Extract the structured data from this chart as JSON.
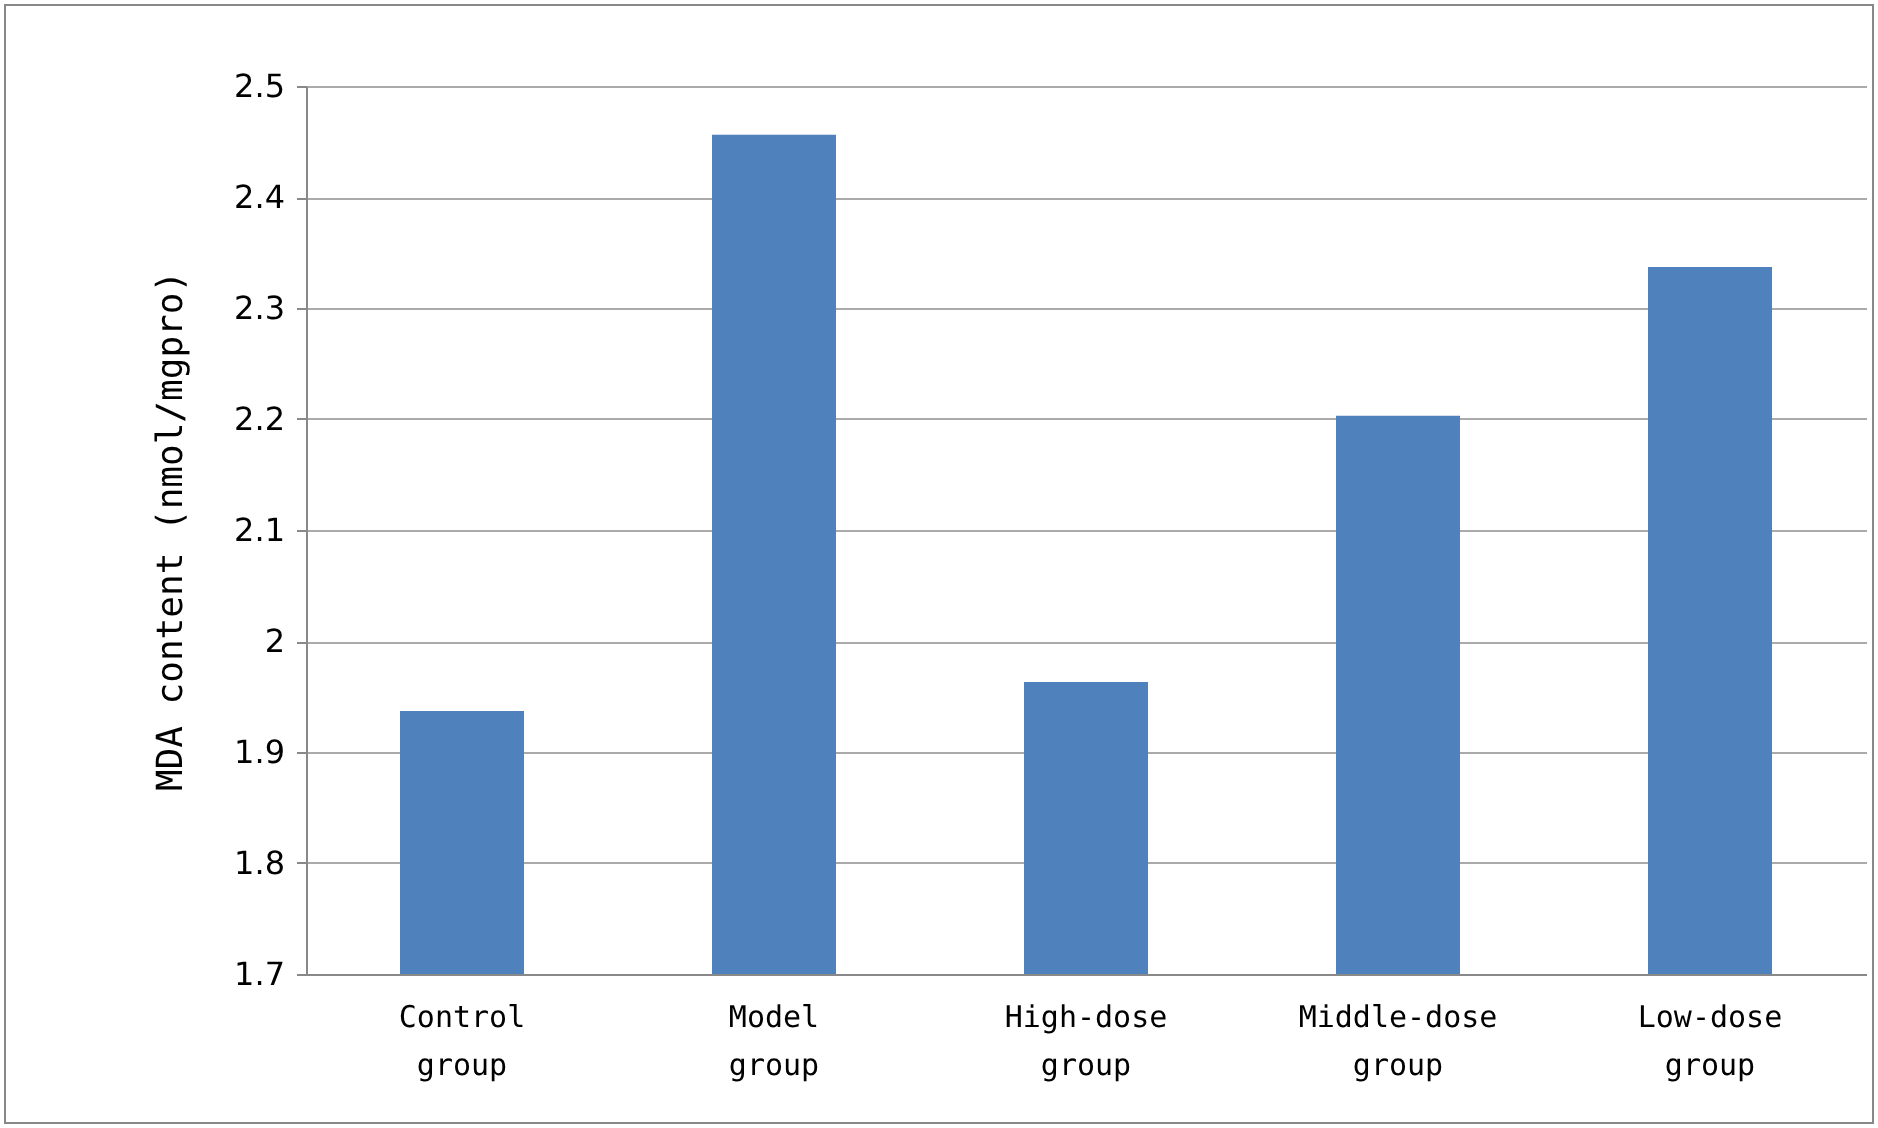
{
  "chart_data": {
    "type": "bar",
    "ylabel": "MDA content (nmol/mgpro)",
    "categories": [
      "Control group",
      "Model group",
      "High-dose group",
      "Middle-dose group",
      "Low-dose group"
    ],
    "values": [
      1.937,
      2.456,
      1.963,
      2.203,
      2.337
    ],
    "color": "#4f81bd",
    "ylim": [
      1.7,
      2.5
    ],
    "yticks": [
      1.7,
      1.8,
      1.9,
      {
        "value": 2,
        "label": "2"
      },
      2.1,
      2.2,
      2.3,
      2.4,
      2.5
    ],
    "grid": "y"
  }
}
